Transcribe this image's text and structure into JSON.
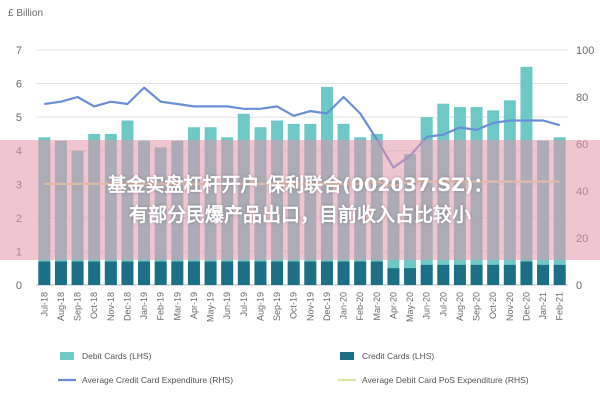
{
  "chart_data": {
    "type": "bar",
    "left_axis_unit": "£ Billion",
    "left_ticks": [
      "0",
      "1",
      "2",
      "3",
      "4",
      "5",
      "6",
      "7"
    ],
    "right_ticks": [
      "0",
      "20",
      "40",
      "60",
      "80",
      "100"
    ],
    "ylim_left": [
      0,
      7
    ],
    "ylim_right": [
      0,
      100
    ],
    "categories": [
      "Jul-18",
      "Aug-18",
      "Sep-18",
      "Oct-18",
      "Nov-18",
      "Dec-18",
      "Jan-19",
      "Feb-19",
      "Mar-19",
      "Apr-19",
      "May-19",
      "Jun-19",
      "Jul-19",
      "Aug-19",
      "Sep-19",
      "Oct-19",
      "Nov-19",
      "Dec-19",
      "Jan-20",
      "Feb-20",
      "Mar-20",
      "Apr-20",
      "May-20",
      "Jun-20",
      "Jul-20",
      "Aug-20",
      "Sep-20",
      "Oct-20",
      "Nov-20",
      "Dec-20",
      "Jan-21",
      "Feb-21"
    ],
    "legend_position": "bottom",
    "series": [
      {
        "name": "Debit Cards (LHS)",
        "kind": "bar",
        "color": "#6ec8c5",
        "values": [
          4.4,
          4.3,
          4.0,
          4.5,
          4.5,
          4.9,
          4.3,
          4.1,
          4.3,
          4.7,
          4.7,
          4.4,
          5.1,
          4.7,
          4.9,
          4.8,
          4.8,
          5.9,
          4.8,
          4.4,
          4.5,
          3.1,
          3.9,
          5.0,
          5.4,
          5.3,
          5.3,
          5.2,
          5.5,
          6.5,
          4.3,
          4.4
        ]
      },
      {
        "name": "Credit Cards (LHS)",
        "kind": "bar",
        "color": "#1d6f86",
        "values": [
          0.7,
          0.7,
          0.7,
          0.7,
          0.7,
          0.7,
          0.7,
          0.7,
          0.7,
          0.7,
          0.7,
          0.7,
          0.7,
          0.7,
          0.7,
          0.7,
          0.7,
          0.7,
          0.7,
          0.7,
          0.7,
          0.5,
          0.5,
          0.6,
          0.6,
          0.6,
          0.6,
          0.6,
          0.6,
          0.7,
          0.6,
          0.6
        ]
      },
      {
        "name": "Average Credit Card Expenditure (RHS)",
        "kind": "line",
        "color": "#6a8fd6",
        "values": [
          77,
          78,
          80,
          76,
          78,
          77,
          84,
          78,
          77,
          76,
          76,
          76,
          75,
          75,
          76,
          72,
          74,
          73,
          80,
          73,
          62,
          50,
          55,
          63,
          64,
          67,
          66,
          69,
          70,
          70,
          70,
          68
        ]
      },
      {
        "name": "Average Debit Card PoS Expenditure (RHS)",
        "kind": "line",
        "color": "#dfe7a8",
        "values": [
          43,
          43,
          43,
          43,
          43,
          43,
          43,
          43,
          43,
          43,
          43,
          43,
          43,
          43,
          43,
          43,
          43,
          43,
          43,
          43,
          44,
          42,
          44,
          44,
          44,
          44,
          44,
          44,
          44,
          44,
          44,
          44
        ]
      }
    ]
  },
  "overlay": {
    "line1": "基金实盘杠杆开户 保利联合(002037.SZ)：",
    "line2": "有部分民爆产品出口，目前收入占比较小"
  }
}
